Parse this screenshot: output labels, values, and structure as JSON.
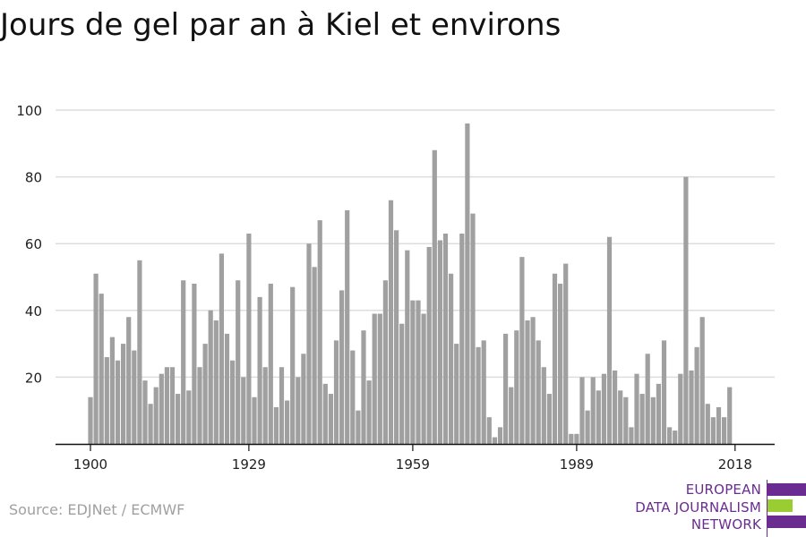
{
  "title": "Jours de gel par an à Kiel et environs",
  "source": "Source: EDJNet / ECMWF",
  "logo": {
    "lines": [
      "EUROPEAN",
      "DATA JOURNALISM",
      "NETWORK"
    ],
    "colors": {
      "purple": "#6a2c91",
      "green": "#9acd32"
    }
  },
  "colors": {
    "bar": "#a0a0a0",
    "grid": "#dddddd",
    "axis": "#111111",
    "text": "#222222"
  },
  "chart_data": {
    "type": "bar",
    "title": "Jours de gel par an à Kiel et environs",
    "xlabel": "",
    "ylabel": "",
    "ylim": [
      0,
      100
    ],
    "yticks": [
      20,
      40,
      60,
      80,
      100
    ],
    "xticks": [
      1900,
      1929,
      1959,
      1989,
      2018
    ],
    "grid": true,
    "categories": [
      1900,
      1901,
      1902,
      1903,
      1904,
      1905,
      1906,
      1907,
      1908,
      1909,
      1910,
      1911,
      1912,
      1913,
      1914,
      1915,
      1916,
      1917,
      1918,
      1919,
      1920,
      1921,
      1922,
      1923,
      1924,
      1925,
      1926,
      1927,
      1928,
      1929,
      1930,
      1931,
      1932,
      1933,
      1934,
      1935,
      1936,
      1937,
      1938,
      1939,
      1940,
      1941,
      1942,
      1943,
      1944,
      1945,
      1946,
      1947,
      1948,
      1949,
      1950,
      1951,
      1952,
      1953,
      1954,
      1955,
      1956,
      1957,
      1958,
      1959,
      1960,
      1961,
      1962,
      1963,
      1964,
      1965,
      1966,
      1967,
      1968,
      1969,
      1970,
      1971,
      1972,
      1973,
      1974,
      1975,
      1976,
      1977,
      1978,
      1979,
      1980,
      1981,
      1982,
      1983,
      1984,
      1985,
      1986,
      1987,
      1988,
      1989,
      1990,
      1991,
      1992,
      1993,
      1994,
      1995,
      1996,
      1997,
      1998,
      1999,
      2000,
      2001,
      2002,
      2003,
      2004,
      2005,
      2006,
      2007,
      2008,
      2009,
      2010,
      2011,
      2012,
      2013,
      2014,
      2015,
      2016,
      2017,
      2018
    ],
    "values": [
      14,
      51,
      45,
      26,
      32,
      25,
      30,
      38,
      28,
      55,
      19,
      12,
      17,
      21,
      23,
      23,
      15,
      49,
      16,
      48,
      23,
      30,
      40,
      37,
      57,
      33,
      25,
      49,
      20,
      63,
      14,
      44,
      23,
      48,
      11,
      23,
      13,
      47,
      20,
      27,
      60,
      53,
      67,
      18,
      15,
      31,
      46,
      70,
      28,
      10,
      34,
      19,
      39,
      39,
      49,
      73,
      64,
      36,
      58,
      43,
      43,
      39,
      59,
      88,
      61,
      63,
      51,
      30,
      63,
      96,
      69,
      29,
      31,
      8,
      2,
      5,
      33,
      17,
      34,
      56,
      37,
      38,
      31,
      23,
      15,
      51,
      48,
      54,
      3,
      3,
      20,
      10,
      20,
      16,
      21,
      62,
      22,
      16,
      14,
      5,
      21,
      15,
      27,
      14,
      18,
      31,
      5,
      4,
      21,
      80,
      22,
      29,
      38,
      12,
      8,
      11,
      8,
      17,
      0
    ]
  }
}
